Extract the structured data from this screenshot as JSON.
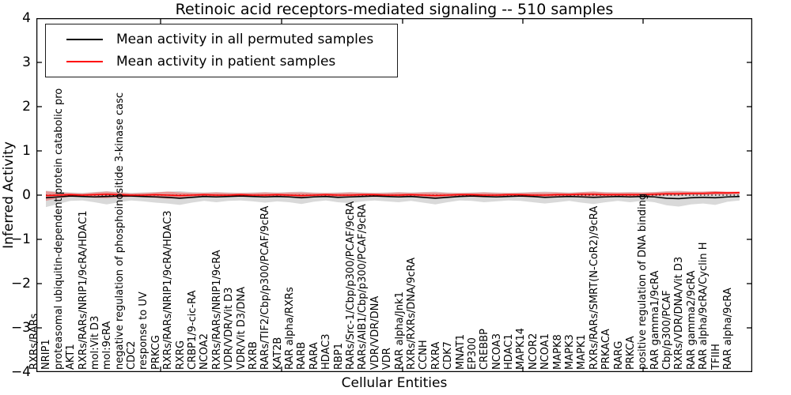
{
  "title": "Retinoic acid receptors-mediated signaling -- 510 samples",
  "legend": {
    "items": [
      {
        "label": "Mean activity in all permuted samples",
        "color": "#000000"
      },
      {
        "label": "Mean activity in patient samples",
        "color": "#ff0000"
      }
    ]
  },
  "axes": {
    "y_label": "Inferred Activity",
    "x_label": "Cellular Entities",
    "y_ticks": [
      4,
      3,
      2,
      1,
      0,
      -1,
      -2,
      -3,
      -4
    ],
    "y_tick_labels": [
      "4",
      "3",
      "2",
      "1",
      "0",
      "−1",
      "−2",
      "−3",
      "−4"
    ],
    "y_range": [
      -4,
      4
    ]
  },
  "chart_data": {
    "type": "line",
    "title": "Retinoic acid receptors-mediated signaling -- 510 samples",
    "xlabel": "Cellular Entities",
    "ylabel": "Inferred Activity",
    "ylim": [
      -4,
      4
    ],
    "grid": false,
    "legend_position": "upper left",
    "zero_line": 0,
    "categories": [
      "RXRs/RARs",
      "NRIP1",
      "proteasomal ubiquitin-dependent protein catabolic pro",
      "AKT1",
      "RXRs/RARs/NRIP1/9cRA/HDAC1",
      "mol:Vit D3",
      "mol:9cRA",
      "negative regulation of phosphoinositide 3-kinase casc",
      "CDC2",
      "response to UV",
      "PRKCG",
      "RXRs/RARs/NRIP1/9cRA/HDAC3",
      "RXRG",
      "CRBP1/9-cic-RA",
      "NCOA2",
      "RXRs/RARs/NRIP1/9cRA",
      "VDR/VDR/Vit D3",
      "VDR/Vit D3/DNA",
      "RXRB",
      "RARs/TIF2/Cbp/p300/PCAF/9cRA",
      "KAT2B",
      "RAR alpha/RXRs",
      "RARB",
      "RARA",
      "HDAC3",
      "RBP1",
      "RARs/Src-1/Cbp/p300/PCAF/9cRA",
      "RARs/AIB1/Cbp/p300/PCAF/9cRA",
      "VDR/VDR/DNA",
      "VDR",
      "RAR alpha/Jnk1",
      "RXRs/RXRs/DNA/9cRA",
      "CCNH",
      "RXRA",
      "CDK7",
      "MNAT1",
      "EP300",
      "CREBBP",
      "NCOA3",
      "HDAC1",
      "MAPK14",
      "NCOR2",
      "NCOA1",
      "MAPK8",
      "MAPK3",
      "MAPK1",
      "RXRs/RARs/SMRT(N-CoR2)/9cRA",
      "PRKACA",
      "RARG",
      "PRKCA",
      "positive regulation of DNA binding",
      "RAR gamma1/9cRA",
      "Cbp/p300/PCAF",
      "RXRs/VDR/DNA/Vit D3",
      "RAR gamma2/9cRA",
      "RAR alpha/9cRA/Cyclin H",
      "TFIIH",
      "RAR alpha/9cRA"
    ],
    "series": [
      {
        "name": "Mean activity in all permuted samples",
        "color": "#000000",
        "band_color": "rgba(130,130,130,0.30)",
        "mean": [
          -0.06,
          -0.04,
          -0.02,
          -0.03,
          -0.04,
          -0.03,
          -0.02,
          -0.02,
          -0.03,
          -0.04,
          -0.05,
          -0.07,
          -0.05,
          -0.03,
          -0.04,
          -0.03,
          -0.02,
          -0.03,
          -0.04,
          -0.03,
          -0.04,
          -0.06,
          -0.04,
          -0.03,
          -0.05,
          -0.04,
          -0.03,
          -0.02,
          -0.03,
          -0.04,
          -0.03,
          -0.05,
          -0.07,
          -0.05,
          -0.03,
          -0.02,
          -0.03,
          -0.04,
          -0.03,
          -0.02,
          -0.03,
          -0.05,
          -0.04,
          -0.03,
          -0.04,
          -0.05,
          -0.04,
          -0.03,
          -0.04,
          -0.03,
          -0.04,
          -0.07,
          -0.08,
          -0.06,
          -0.05,
          -0.06,
          -0.04,
          -0.03
        ],
        "upper": [
          0.1,
          0.08,
          0.06,
          0.05,
          0.07,
          0.09,
          0.07,
          0.05,
          0.06,
          0.07,
          0.08,
          0.09,
          0.07,
          0.06,
          0.07,
          0.06,
          0.05,
          0.06,
          0.07,
          0.06,
          0.07,
          0.08,
          0.06,
          0.05,
          0.06,
          0.07,
          0.06,
          0.05,
          0.06,
          0.07,
          0.06,
          0.07,
          0.08,
          0.06,
          0.05,
          0.06,
          0.07,
          0.06,
          0.05,
          0.06,
          0.07,
          0.08,
          0.07,
          0.06,
          0.07,
          0.08,
          0.07,
          0.06,
          0.07,
          0.06,
          0.07,
          0.09,
          0.1,
          0.08,
          0.08,
          0.09,
          0.07,
          0.06
        ],
        "lower": [
          -0.27,
          -0.2,
          -0.13,
          -0.12,
          -0.16,
          -0.21,
          -0.16,
          -0.12,
          -0.14,
          -0.17,
          -0.19,
          -0.22,
          -0.17,
          -0.13,
          -0.16,
          -0.13,
          -0.12,
          -0.14,
          -0.17,
          -0.14,
          -0.16,
          -0.2,
          -0.15,
          -0.12,
          -0.16,
          -0.18,
          -0.14,
          -0.12,
          -0.14,
          -0.16,
          -0.13,
          -0.17,
          -0.21,
          -0.16,
          -0.12,
          -0.13,
          -0.16,
          -0.14,
          -0.12,
          -0.13,
          -0.16,
          -0.19,
          -0.16,
          -0.13,
          -0.17,
          -0.2,
          -0.16,
          -0.13,
          -0.16,
          -0.13,
          -0.16,
          -0.23,
          -0.26,
          -0.21,
          -0.19,
          -0.22,
          -0.15,
          -0.12
        ]
      },
      {
        "name": "Mean activity in patient samples",
        "color": "#ff0000",
        "band_color": "rgba(255,0,0,0.30)",
        "mean": [
          -0.01,
          0.0,
          0.01,
          0.0,
          0.01,
          0.02,
          0.01,
          0.0,
          0.0,
          0.01,
          0.0,
          -0.01,
          0.0,
          0.01,
          0.0,
          0.0,
          0.01,
          0.0,
          0.0,
          0.01,
          0.0,
          -0.01,
          0.0,
          0.01,
          0.0,
          0.0,
          0.01,
          0.01,
          0.0,
          0.0,
          0.01,
          0.0,
          -0.01,
          0.0,
          0.01,
          0.01,
          0.0,
          0.0,
          0.01,
          0.01,
          0.0,
          0.0,
          0.01,
          0.01,
          0.02,
          0.02,
          0.01,
          0.01,
          0.01,
          0.01,
          0.02,
          0.03,
          0.03,
          0.04,
          0.04,
          0.05,
          0.05,
          0.06
        ],
        "upper": [
          0.09,
          0.06,
          0.05,
          0.04,
          0.06,
          0.08,
          0.06,
          0.04,
          0.05,
          0.06,
          0.08,
          0.06,
          0.05,
          0.05,
          0.06,
          0.05,
          0.05,
          0.05,
          0.06,
          0.05,
          0.06,
          0.06,
          0.05,
          0.05,
          0.05,
          0.06,
          0.05,
          0.05,
          0.05,
          0.06,
          0.05,
          0.06,
          0.06,
          0.05,
          0.05,
          0.05,
          0.06,
          0.05,
          0.05,
          0.05,
          0.06,
          0.06,
          0.06,
          0.05,
          0.07,
          0.08,
          0.06,
          0.06,
          0.06,
          0.06,
          0.07,
          0.08,
          0.08,
          0.08,
          0.08,
          0.09,
          0.08,
          0.08
        ],
        "lower": [
          -0.13,
          -0.07,
          -0.04,
          -0.04,
          -0.06,
          -0.07,
          -0.05,
          -0.04,
          -0.05,
          -0.06,
          -0.08,
          -0.07,
          -0.05,
          -0.04,
          -0.05,
          -0.04,
          -0.04,
          -0.04,
          -0.05,
          -0.04,
          -0.05,
          -0.06,
          -0.04,
          -0.04,
          -0.04,
          -0.05,
          -0.04,
          -0.04,
          -0.04,
          -0.05,
          -0.04,
          -0.05,
          -0.06,
          -0.04,
          -0.04,
          -0.04,
          -0.05,
          -0.04,
          -0.04,
          -0.04,
          -0.05,
          -0.05,
          -0.05,
          -0.04,
          -0.04,
          -0.03,
          -0.03,
          -0.03,
          -0.03,
          -0.03,
          -0.02,
          -0.01,
          -0.01,
          0.0,
          0.0,
          0.01,
          0.01,
          0.02
        ]
      }
    ]
  }
}
